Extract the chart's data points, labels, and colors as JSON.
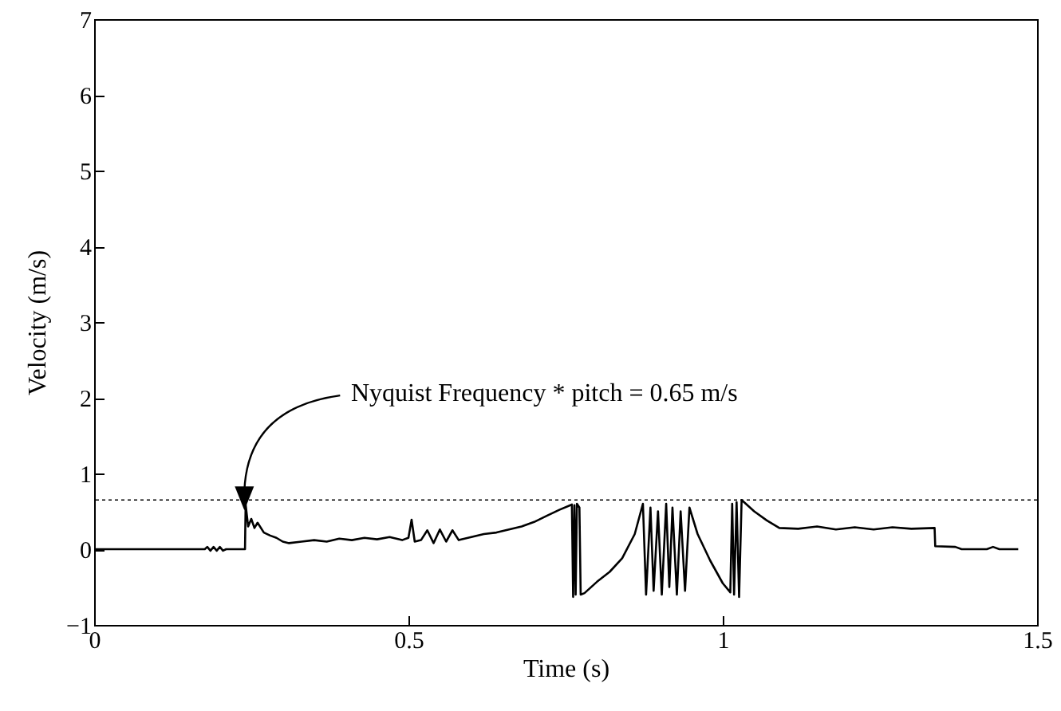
{
  "chart_data": {
    "type": "line",
    "xlabel": "Time (s)",
    "ylabel": "Velocity (m/s)",
    "xlim": [
      0,
      1.5
    ],
    "xticks": [
      0,
      0.5,
      1,
      1.5
    ],
    "ylim": [
      -1,
      7
    ],
    "yticks": [
      -1,
      0,
      1,
      2,
      3,
      4,
      5,
      6,
      7
    ],
    "grid": false,
    "annotations": [
      "Nyquist Frequency * pitch = 0.65 m/s"
    ],
    "ref_lines": [
      {
        "axis": "y",
        "value": 0.65,
        "color": "#000000",
        "line_style": "dotted"
      }
    ],
    "series": [
      {
        "color": "#000000",
        "x": [
          0,
          0.176,
          0.18,
          0.185,
          0.19,
          0.195,
          0.2,
          0.205,
          0.21,
          0.24,
          0.241,
          0.245,
          0.25,
          0.255,
          0.26,
          0.27,
          0.28,
          0.29,
          0.3,
          0.31,
          0.33,
          0.35,
          0.37,
          0.39,
          0.41,
          0.43,
          0.45,
          0.47,
          0.49,
          0.5,
          0.505,
          0.51,
          0.52,
          0.53,
          0.54,
          0.55,
          0.56,
          0.57,
          0.58,
          0.6,
          0.62,
          0.64,
          0.66,
          0.68,
          0.7,
          0.72,
          0.74,
          0.76,
          0.762,
          0.764,
          0.766,
          0.768,
          0.772,
          0.774,
          0.78,
          0.8,
          0.82,
          0.84,
          0.86,
          0.873,
          0.878,
          0.885,
          0.89,
          0.897,
          0.903,
          0.91,
          0.915,
          0.92,
          0.927,
          0.933,
          0.94,
          0.947,
          0.96,
          0.98,
          1.0,
          1.012,
          1.015,
          1.018,
          1.022,
          1.026,
          1.03,
          1.05,
          1.07,
          1.09,
          1.12,
          1.15,
          1.18,
          1.21,
          1.24,
          1.27,
          1.3,
          1.337,
          1.338,
          1.37,
          1.38,
          1.42,
          1.43,
          1.44,
          1.47
        ],
        "values": [
          0,
          0,
          0.03,
          -0.02,
          0.03,
          -0.02,
          0.03,
          -0.02,
          0,
          0,
          0.59,
          0.3,
          0.4,
          0.28,
          0.35,
          0.22,
          0.18,
          0.15,
          0.1,
          0.08,
          0.1,
          0.12,
          0.1,
          0.14,
          0.12,
          0.15,
          0.13,
          0.16,
          0.12,
          0.15,
          0.39,
          0.1,
          0.12,
          0.25,
          0.08,
          0.26,
          0.1,
          0.25,
          0.12,
          0.16,
          0.2,
          0.22,
          0.26,
          0.3,
          0.36,
          0.44,
          0.52,
          0.59,
          -0.63,
          0.58,
          -0.6,
          0.6,
          0.55,
          -0.6,
          -0.58,
          -0.43,
          -0.3,
          -0.12,
          0.2,
          0.6,
          -0.6,
          0.55,
          -0.55,
          0.5,
          -0.6,
          0.6,
          -0.5,
          0.55,
          -0.6,
          0.5,
          -0.55,
          0.55,
          0.2,
          -0.15,
          -0.45,
          -0.57,
          0.6,
          -0.6,
          0.62,
          -0.63,
          0.65,
          0.5,
          0.38,
          0.28,
          0.27,
          0.3,
          0.26,
          0.29,
          0.26,
          0.29,
          0.27,
          0.28,
          0.04,
          0.03,
          0,
          0,
          0.03,
          0,
          0
        ]
      }
    ]
  }
}
